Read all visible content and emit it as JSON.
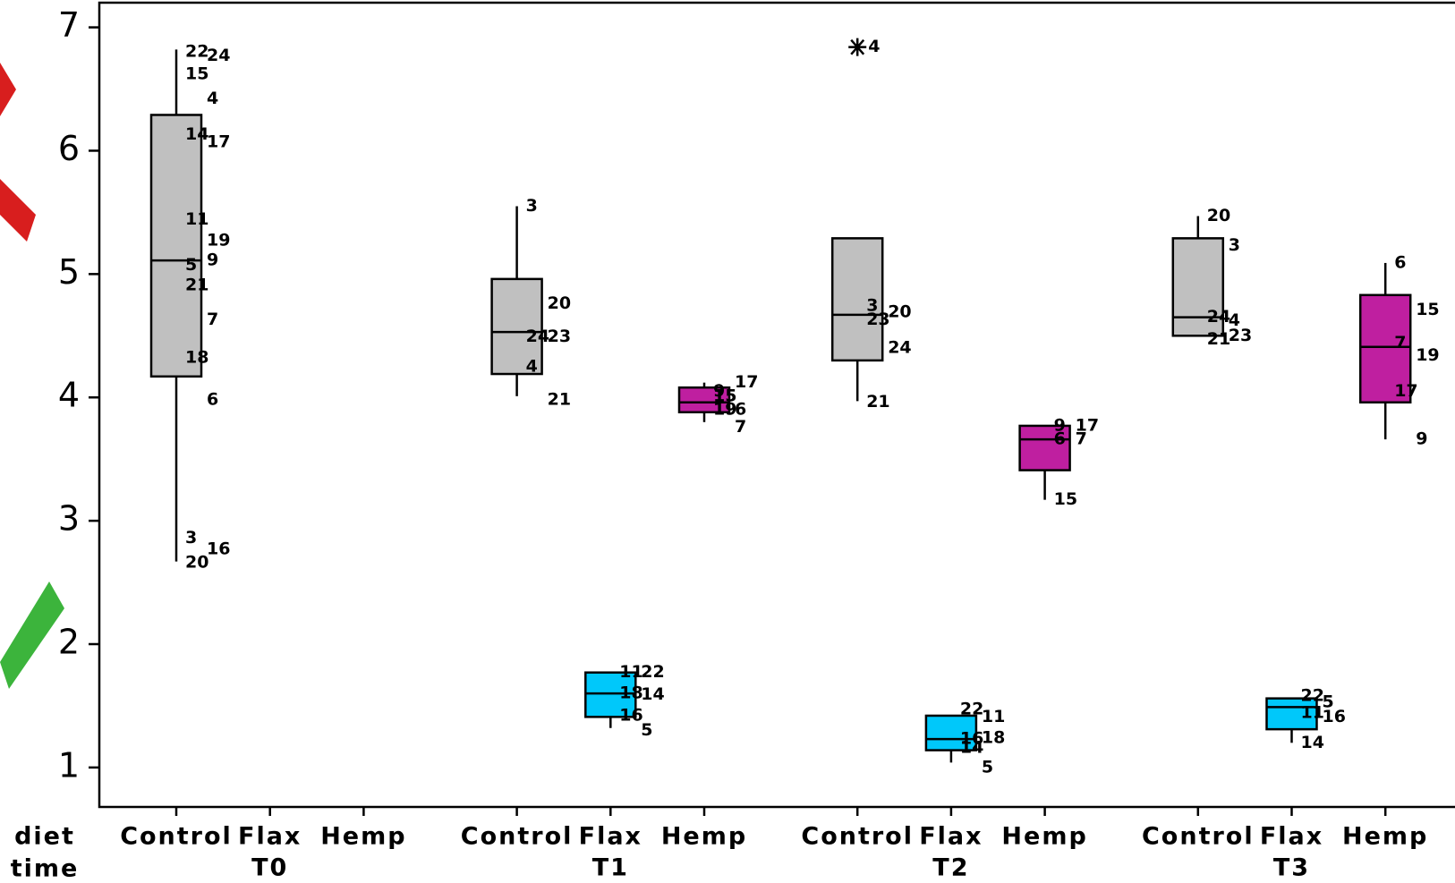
{
  "chart_data": {
    "type": "box",
    "ylim": [
      0.68,
      7.2
    ],
    "yticks": [
      1,
      2,
      3,
      4,
      5,
      6,
      7
    ],
    "row_labels": [
      "diet",
      "time"
    ],
    "groups": [
      {
        "name": "T0",
        "boxes": [
          {
            "diet": "Control",
            "color": "#c0c0c0",
            "whislo": 2.67,
            "q1": 4.17,
            "med": 5.11,
            "q3": 6.29,
            "whishi": 6.82,
            "fliers": [],
            "points": [
              {
                "label": "22",
                "value": 6.8
              },
              {
                "label": "24",
                "value": 6.77
              },
              {
                "label": "15",
                "value": 6.62
              },
              {
                "label": "4",
                "value": 6.42
              },
              {
                "label": "14",
                "value": 6.13
              },
              {
                "label": "17",
                "value": 6.07
              },
              {
                "label": "11",
                "value": 5.44
              },
              {
                "label": "19",
                "value": 5.27
              },
              {
                "label": "5",
                "value": 5.07
              },
              {
                "label": "9",
                "value": 5.11
              },
              {
                "label": "21",
                "value": 4.91
              },
              {
                "label": "7",
                "value": 4.63
              },
              {
                "label": "18",
                "value": 4.32
              },
              {
                "label": "6",
                "value": 3.98
              },
              {
                "label": "3",
                "value": 2.86
              },
              {
                "label": "16",
                "value": 2.77
              },
              {
                "label": "20",
                "value": 2.66
              }
            ]
          },
          {
            "diet": "Flax"
          },
          {
            "diet": "Hemp"
          }
        ]
      },
      {
        "name": "T1",
        "boxes": [
          {
            "diet": "Control",
            "color": "#c0c0c0",
            "whislo": 4.01,
            "q1": 4.19,
            "med": 4.53,
            "q3": 4.96,
            "whishi": 5.55,
            "fliers": [],
            "points": [
              {
                "label": "3",
                "value": 5.55
              },
              {
                "label": "20",
                "value": 4.76
              },
              {
                "label": "24",
                "value": 4.49
              },
              {
                "label": "23",
                "value": 4.49
              },
              {
                "label": "4",
                "value": 4.25
              },
              {
                "label": "21",
                "value": 3.98
              }
            ]
          },
          {
            "diet": "Flax",
            "color": "#00c8fa",
            "whislo": 1.32,
            "q1": 1.41,
            "med": 1.6,
            "q3": 1.77,
            "whishi": 1.77,
            "fliers": [],
            "points": [
              {
                "label": "11",
                "value": 1.77
              },
              {
                "label": "22",
                "value": 1.77
              },
              {
                "label": "18",
                "value": 1.6
              },
              {
                "label": "14",
                "value": 1.59
              },
              {
                "label": "16",
                "value": 1.42
              },
              {
                "label": "5",
                "value": 1.3
              }
            ]
          },
          {
            "diet": "Hemp",
            "color": "#bf1fa0",
            "whislo": 3.8,
            "q1": 3.88,
            "med": 3.96,
            "q3": 4.08,
            "whishi": 4.12,
            "fliers": [],
            "points": [
              {
                "label": "9",
                "value": 4.05
              },
              {
                "label": "17",
                "value": 4.12
              },
              {
                "label": "15",
                "value": 4.01
              },
              {
                "label": "6",
                "value": 3.9
              },
              {
                "label": "19",
                "value": 3.9
              },
              {
                "label": "7",
                "value": 3.76
              }
            ]
          }
        ]
      },
      {
        "name": "T2",
        "boxes": [
          {
            "diet": "Control",
            "color": "#c0c0c0",
            "whislo": 3.97,
            "q1": 4.3,
            "med": 4.67,
            "q3": 5.29,
            "whishi": 5.29,
            "fliers": [
              {
                "label": "4",
                "value": 6.84
              }
            ],
            "points": [
              {
                "label": "3",
                "value": 4.74
              },
              {
                "label": "20",
                "value": 4.69
              },
              {
                "label": "23",
                "value": 4.63
              },
              {
                "label": "24",
                "value": 4.4
              },
              {
                "label": "21",
                "value": 3.96
              }
            ]
          },
          {
            "diet": "Flax",
            "color": "#00c8fa",
            "whislo": 1.04,
            "q1": 1.14,
            "med": 1.23,
            "q3": 1.42,
            "whishi": 1.42,
            "fliers": [],
            "points": [
              {
                "label": "22",
                "value": 1.47
              },
              {
                "label": "11",
                "value": 1.41
              },
              {
                "label": "16",
                "value": 1.23
              },
              {
                "label": "18",
                "value": 1.24
              },
              {
                "label": "14",
                "value": 1.16
              },
              {
                "label": "5",
                "value": 1.0
              }
            ]
          },
          {
            "diet": "Hemp",
            "color": "#bf1fa0",
            "whislo": 3.17,
            "q1": 3.41,
            "med": 3.66,
            "q3": 3.77,
            "whishi": 3.77,
            "fliers": [],
            "points": [
              {
                "label": "9",
                "value": 3.77
              },
              {
                "label": "17",
                "value": 3.77
              },
              {
                "label": "6",
                "value": 3.66
              },
              {
                "label": "7",
                "value": 3.66
              },
              {
                "label": "15",
                "value": 3.17
              }
            ]
          }
        ]
      },
      {
        "name": "T3",
        "boxes": [
          {
            "diet": "Control",
            "color": "#c0c0c0",
            "whislo": 4.5,
            "q1": 4.5,
            "med": 4.65,
            "q3": 5.29,
            "whishi": 5.47,
            "fliers": [],
            "points": [
              {
                "label": "20",
                "value": 5.47
              },
              {
                "label": "3",
                "value": 5.23
              },
              {
                "label": "24",
                "value": 4.65
              },
              {
                "label": "4",
                "value": 4.62
              },
              {
                "label": "21",
                "value": 4.47
              },
              {
                "label": "23",
                "value": 4.5
              }
            ]
          },
          {
            "diet": "Flax",
            "color": "#00c8fa",
            "whislo": 1.2,
            "q1": 1.31,
            "med": 1.49,
            "q3": 1.56,
            "whishi": 1.56,
            "fliers": [],
            "points": [
              {
                "label": "22",
                "value": 1.58
              },
              {
                "label": "5",
                "value": 1.53
              },
              {
                "label": "11",
                "value": 1.44
              },
              {
                "label": "16",
                "value": 1.41
              },
              {
                "label": "14",
                "value": 1.2
              }
            ]
          },
          {
            "diet": "Hemp",
            "color": "#bf1fa0",
            "whislo": 3.66,
            "q1": 3.96,
            "med": 4.41,
            "q3": 4.83,
            "whishi": 5.09,
            "fliers": [],
            "points": [
              {
                "label": "6",
                "value": 5.09
              },
              {
                "label": "15",
                "value": 4.71
              },
              {
                "label": "7",
                "value": 4.44
              },
              {
                "label": "19",
                "value": 4.34
              },
              {
                "label": "17",
                "value": 4.05
              },
              {
                "label": "9",
                "value": 3.66
              }
            ]
          }
        ]
      }
    ]
  }
}
